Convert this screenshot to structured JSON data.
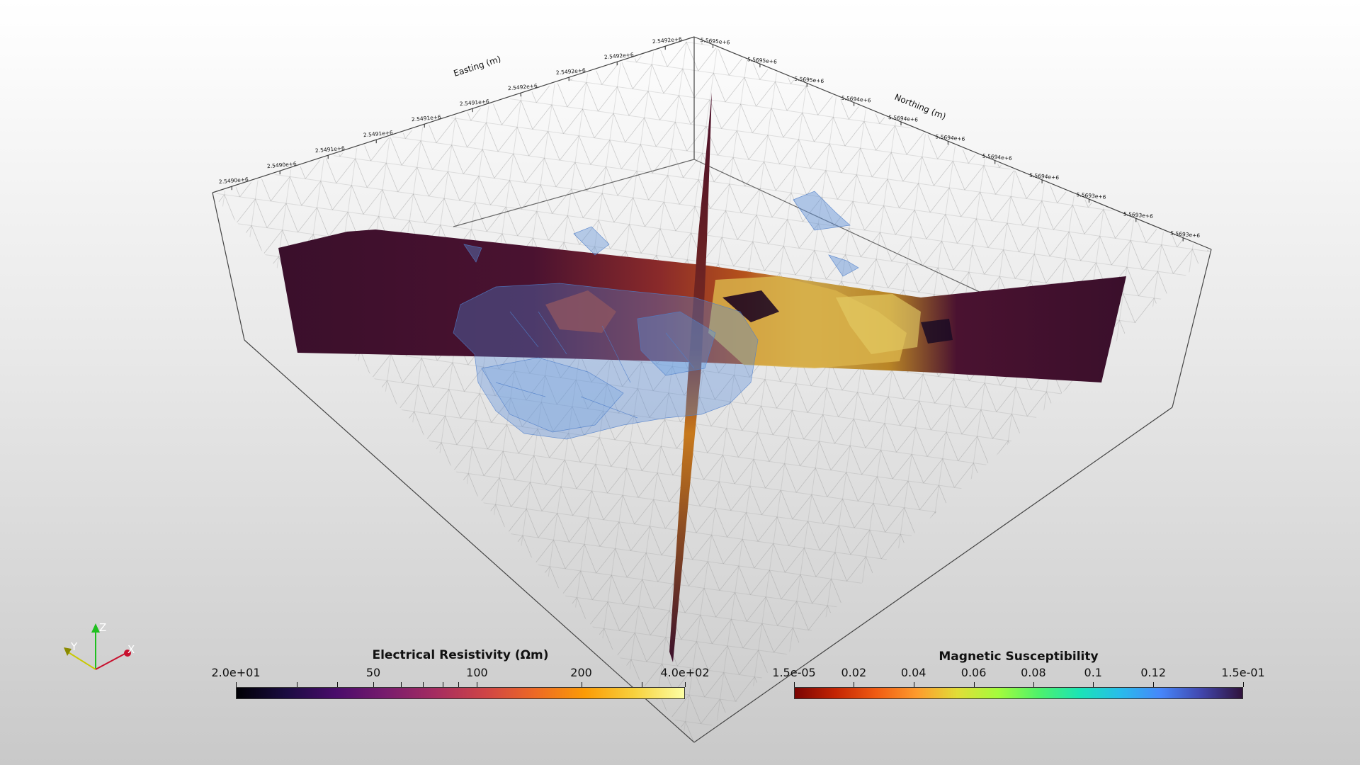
{
  "axes": {
    "easting_title": "Easting (m)",
    "northing_title": "Northing (m)",
    "easting_ticks": [
      "2.5490e+6",
      "2.5490e+6",
      "2.5491e+6",
      "2.5491e+6",
      "2.5491e+6",
      "2.5491e+6",
      "2.5492e+6",
      "2.5492e+6",
      "2.5492e+6",
      "2.5492e+6"
    ],
    "northing_ticks": [
      "5.5695e+6",
      "5.5695e+6",
      "5.5695e+6",
      "5.5694e+6",
      "5.5694e+6",
      "5.5694e+6",
      "5.5694e+6",
      "5.5694e+6",
      "5.5693e+6",
      "5.5693e+6",
      "5.5693e+6"
    ]
  },
  "orientation_widget": {
    "x_label": "X",
    "y_label": "Y",
    "z_label": "Z",
    "x_color": "#c8102e",
    "y_color": "#c8c800",
    "z_color": "#1fbf1f"
  },
  "resistivity_bar": {
    "title": "Electrical Resistivity (Ωm)",
    "labels": [
      "2.0e+01",
      "50",
      "100",
      "200",
      "4.0e+02"
    ],
    "colormap": "inferno"
  },
  "susceptibility_bar": {
    "title": "Magnetic Susceptibility",
    "labels": [
      "1.5e-05",
      "0.02",
      "0.04",
      "0.06",
      "0.08",
      "0.1",
      "0.12",
      "1.5e-01"
    ],
    "colormap": "turbo"
  }
}
